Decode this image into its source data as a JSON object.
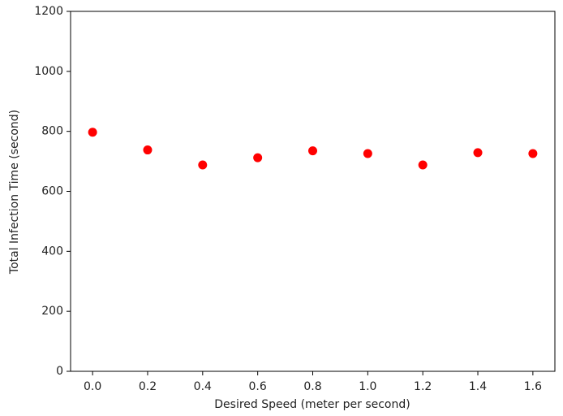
{
  "chart_data": {
    "type": "scatter",
    "x_label": "Desired Speed (meter per second)",
    "y_label": "Total Infection Time (second)",
    "x": [
      0.0,
      0.2,
      0.4,
      0.6,
      0.8,
      1.0,
      1.2,
      1.4,
      1.6
    ],
    "values": [
      797,
      738,
      688,
      712,
      735,
      726,
      688,
      729,
      726
    ],
    "color": "#ff0000",
    "xlim": [
      -0.08,
      1.68
    ],
    "ylim": [
      0,
      1200
    ],
    "xticks": [
      {
        "value": 0.0,
        "label": "0.0"
      },
      0.2,
      0.4,
      0.6,
      0.8,
      {
        "value": 1.0,
        "label": "1.0"
      },
      1.2,
      1.4,
      1.6
    ],
    "yticks": [
      0,
      200,
      400,
      600,
      800,
      1000,
      1200
    ]
  }
}
